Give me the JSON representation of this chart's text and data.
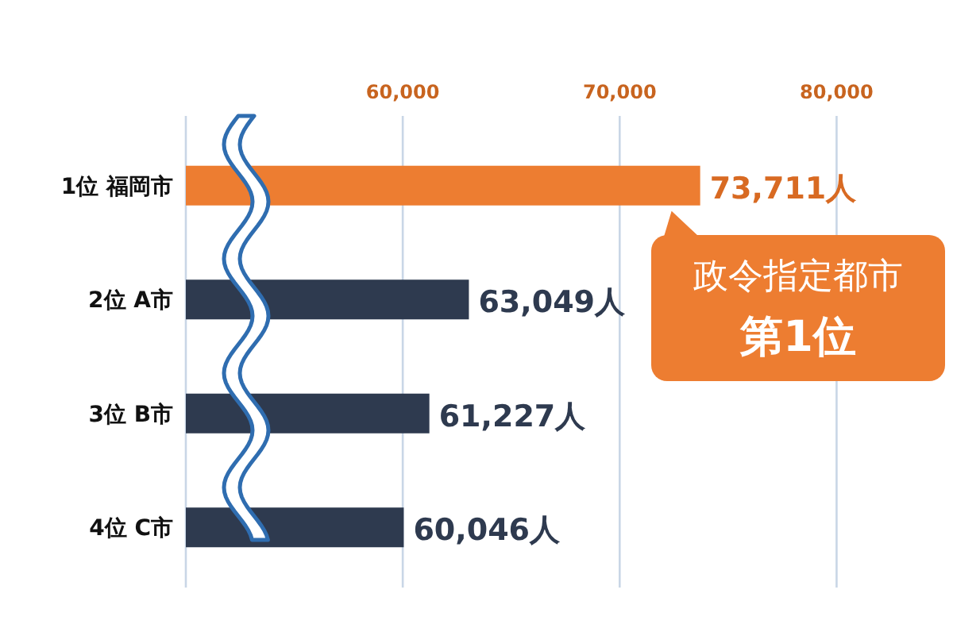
{
  "chart_data": {
    "type": "bar",
    "orientation": "horizontal",
    "categories": [
      "1位 福岡市",
      "2位 A市",
      "3位 B市",
      "4位 C市"
    ],
    "values": [
      73711,
      63049,
      61227,
      60046
    ],
    "colors": [
      "#ed7d31",
      "#2e3a4f",
      "#2e3a4f",
      "#2e3a4f"
    ],
    "value_labels": [
      "73,711人",
      "63,049人",
      "61,227人",
      "60,046人"
    ],
    "xlim": [
      50000,
      85000
    ],
    "xticks": [
      {
        "value": 50000,
        "label": null
      },
      {
        "value": 60000,
        "label": "60,000"
      },
      {
        "value": 70000,
        "label": "70,000"
      },
      {
        "value": 80000,
        "label": "80,000"
      }
    ],
    "grid": "x",
    "annotations": [
      {
        "text": "政令指定都市",
        "x": 73711,
        "y": "1位 福岡市"
      },
      "第1位"
    ]
  }
}
